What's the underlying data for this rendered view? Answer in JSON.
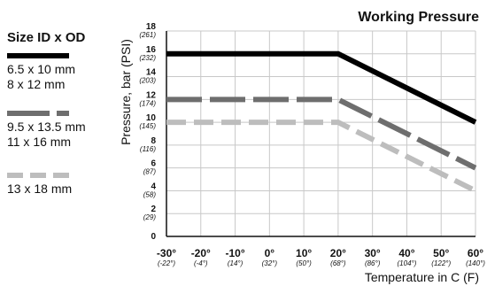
{
  "chart_data": {
    "type": "line",
    "title": "Working Pressure",
    "xlabel": "Temperature in C (F)",
    "ylabel": "Pressure, bar (PSI)",
    "xlim": [
      -30,
      60
    ],
    "ylim": [
      0,
      18
    ],
    "grid": true,
    "legend_placement": "left",
    "legend_title": "Size ID x OD",
    "x_ticks": [
      {
        "value": -30,
        "label": "-30°",
        "sublabel": "(-22°)"
      },
      {
        "value": -20,
        "label": "-20°",
        "sublabel": "(-4°)"
      },
      {
        "value": -10,
        "label": "-10°",
        "sublabel": "(14°)"
      },
      {
        "value": 0,
        "label": "0°",
        "sublabel": "(32°)"
      },
      {
        "value": 10,
        "label": "10°",
        "sublabel": "(50°)"
      },
      {
        "value": 20,
        "label": "20°",
        "sublabel": "(68°)"
      },
      {
        "value": 30,
        "label": "30°",
        "sublabel": "(86°)"
      },
      {
        "value": 40,
        "label": "40°",
        "sublabel": "(104°)"
      },
      {
        "value": 50,
        "label": "50°",
        "sublabel": "(122°)"
      },
      {
        "value": 60,
        "label": "60°",
        "sublabel": "(140°)"
      }
    ],
    "y_ticks": [
      {
        "value": 0,
        "label": "0",
        "sublabel": ""
      },
      {
        "value": 2,
        "label": "2",
        "sublabel": "(29)"
      },
      {
        "value": 4,
        "label": "4",
        "sublabel": "(58)"
      },
      {
        "value": 6,
        "label": "6",
        "sublabel": "(87)"
      },
      {
        "value": 8,
        "label": "8",
        "sublabel": "(116)"
      },
      {
        "value": 10,
        "label": "10",
        "sublabel": "(145)"
      },
      {
        "value": 12,
        "label": "12",
        "sublabel": "(174)"
      },
      {
        "value": 14,
        "label": "14",
        "sublabel": "(203)"
      },
      {
        "value": 16,
        "label": "16",
        "sublabel": "(232)"
      },
      {
        "value": 18,
        "label": "18",
        "sublabel": "(261)"
      }
    ],
    "series": [
      {
        "name": "6.5 x 10 mm|8 x 12 mm",
        "labels": [
          "6.5 x 10 mm",
          "8 x 12 mm"
        ],
        "color": "#000000",
        "style": "solid",
        "points": [
          [
            -30,
            16
          ],
          [
            20,
            16
          ],
          [
            60,
            10
          ]
        ]
      },
      {
        "name": "9.5 x 13.5 mm|11 x 16 mm",
        "labels": [
          "9.5 x 13.5 mm",
          "11 x 16 mm"
        ],
        "color": "#6e6e6e",
        "style": "long-dash",
        "points": [
          [
            -30,
            12
          ],
          [
            20,
            12
          ],
          [
            60,
            6
          ]
        ]
      },
      {
        "name": "13 x 18 mm",
        "labels": [
          "13 x 18 mm"
        ],
        "color": "#bdbdbd",
        "style": "dash",
        "points": [
          [
            -30,
            10
          ],
          [
            20,
            10
          ],
          [
            60,
            4
          ]
        ]
      }
    ]
  }
}
